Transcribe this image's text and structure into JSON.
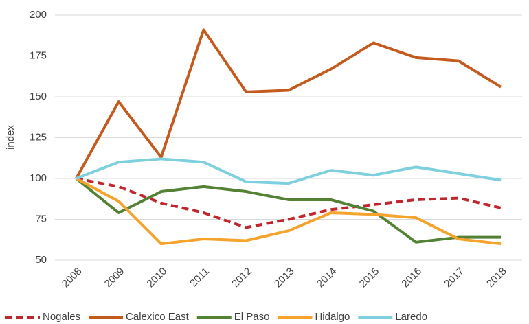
{
  "chart_data": {
    "type": "line",
    "y_label": "index",
    "categories": [
      "2008",
      "2009",
      "2010",
      "2011",
      "2012",
      "2013",
      "2014",
      "2015",
      "2016",
      "2017",
      "2018"
    ],
    "series": [
      {
        "name": "Nogales",
        "color": "#c0272d",
        "line_style": "dashed",
        "values": [
          100,
          95,
          85,
          79,
          70,
          75,
          81,
          84,
          87,
          88,
          82
        ]
      },
      {
        "name": "Calexico East",
        "color": "#c55a1e",
        "values": [
          100,
          147,
          113,
          191,
          153,
          154,
          167,
          183,
          174,
          172,
          156
        ]
      },
      {
        "name": "El Paso",
        "color": "#548235",
        "values": [
          100,
          79,
          92,
          95,
          92,
          87,
          87,
          80,
          61,
          64,
          64
        ]
      },
      {
        "name": "Hidalgo",
        "color": "#f5a32c",
        "values": [
          100,
          86,
          60,
          63,
          62,
          68,
          79,
          78,
          76,
          63,
          60
        ]
      },
      {
        "name": "Laredo",
        "color": "#7fd0df",
        "values": [
          100,
          110,
          112,
          110,
          98,
          97,
          105,
          102,
          107,
          103,
          99
        ]
      }
    ],
    "ylim": [
      50,
      200
    ],
    "yticks": [
      50,
      75,
      100,
      125,
      150,
      175,
      200
    ],
    "grid": true,
    "legend": "bottom"
  }
}
